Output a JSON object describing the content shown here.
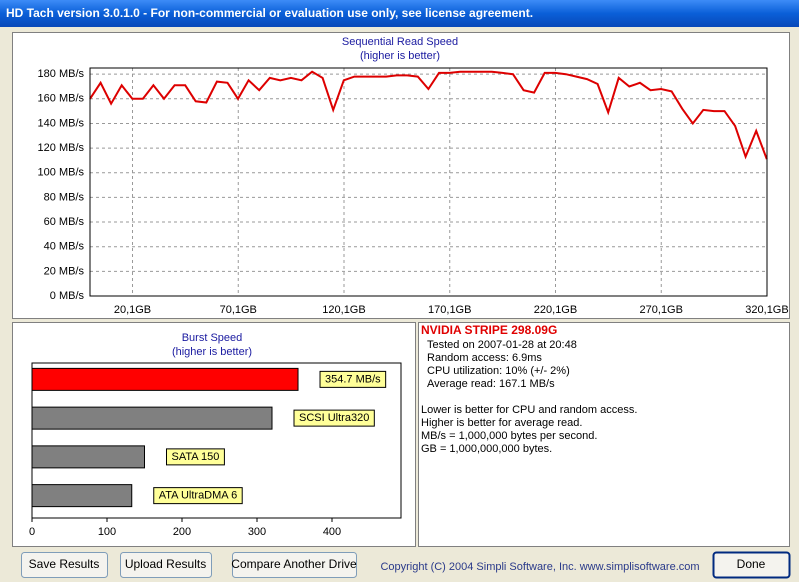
{
  "window": {
    "title": "HD Tach version 3.0.1.0  - For non-commercial or evaluation use only, see license agreement."
  },
  "chart_data": [
    {
      "type": "line",
      "title": "Sequential Read Speed",
      "subtitle": "(higher is better)",
      "x": [
        0,
        5,
        10,
        15,
        20,
        25,
        30,
        35,
        40,
        45,
        50,
        55,
        60,
        65,
        70,
        75,
        80,
        85,
        90,
        95,
        100,
        105,
        110,
        115,
        120,
        125,
        130,
        135,
        140,
        145,
        150,
        155,
        160,
        165,
        170,
        175,
        180,
        185,
        190,
        195,
        200,
        205,
        210,
        215,
        220,
        225,
        230,
        235,
        240,
        245,
        250,
        255,
        260,
        265,
        270,
        275,
        280,
        285,
        290,
        295,
        300,
        305,
        310,
        315,
        320
      ],
      "values": [
        160,
        173,
        156,
        171,
        160,
        160,
        171,
        160,
        171,
        171,
        158,
        157,
        174,
        173,
        160,
        175,
        167,
        177,
        175,
        177,
        175,
        182,
        177,
        151,
        175,
        178,
        178,
        178,
        178,
        179,
        179,
        178,
        168,
        181,
        181,
        182,
        182,
        182,
        182,
        181,
        180,
        167,
        165,
        181,
        181,
        180,
        178,
        176,
        172,
        149,
        177,
        170,
        173,
        167,
        168,
        166,
        152,
        140,
        151,
        150,
        150,
        138,
        113,
        134,
        111
      ],
      "color": "#dd0000",
      "xlim": [
        0,
        320.1
      ],
      "xticks": [
        {
          "value": 20.1,
          "label": "20,1GB"
        },
        {
          "value": 70.1,
          "label": "70,1GB"
        },
        {
          "value": 120.1,
          "label": "120,1GB"
        },
        {
          "value": 170.1,
          "label": "170,1GB"
        },
        {
          "value": 220.1,
          "label": "220,1GB"
        },
        {
          "value": 270.1,
          "label": "270,1GB"
        },
        {
          "value": 320.1,
          "label": "320,1GB"
        }
      ],
      "ylim": [
        0,
        185
      ],
      "yticks": [
        {
          "value": 0,
          "label": "0 MB/s"
        },
        {
          "value": 20,
          "label": "20 MB/s"
        },
        {
          "value": 40,
          "label": "40 MB/s"
        },
        {
          "value": 60,
          "label": "60 MB/s"
        },
        {
          "value": 80,
          "label": "80 MB/s"
        },
        {
          "value": 100,
          "label": "100 MB/s"
        },
        {
          "value": 120,
          "label": "120 MB/s"
        },
        {
          "value": 140,
          "label": "140 MB/s"
        },
        {
          "value": 160,
          "label": "160 MB/s"
        },
        {
          "value": 180,
          "label": "180 MB/s"
        }
      ],
      "grid": true
    },
    {
      "type": "bar",
      "orientation": "horizontal",
      "title": "Burst Speed",
      "subtitle": "(higher is better)",
      "categories": [
        null,
        "SCSI Ultra320",
        "SATA 150",
        "ATA UltraDMA 6"
      ],
      "values": [
        354.7,
        320,
        150,
        133
      ],
      "value_labels": [
        "354.7 MB/s",
        null,
        null,
        null
      ],
      "colors": [
        "#ff0000",
        "#808080",
        "#808080",
        "#808080"
      ],
      "xlim": [
        0,
        492
      ],
      "xticks": [
        0,
        100,
        200,
        300,
        400
      ]
    }
  ],
  "info": {
    "drive": "NVIDIA STRIPE  298.09G",
    "results": [
      "Tested on 2007-01-28 at 20:48",
      "Random access: 6.9ms",
      "CPU utilization: 10% (+/- 2%)",
      "Average read: 167.1 MB/s"
    ],
    "notes": [
      "Lower is better for CPU and random access.",
      "Higher is better for average read.",
      "MB/s = 1,000,000 bytes per second.",
      "GB = 1,000,000,000 bytes."
    ]
  },
  "buttons": [
    "Save Results",
    "Upload Results",
    "Compare Another Drive",
    "Done"
  ],
  "footer": "Copyright (C) 2004 Simpli Software, Inc. www.simplisoftware.com"
}
